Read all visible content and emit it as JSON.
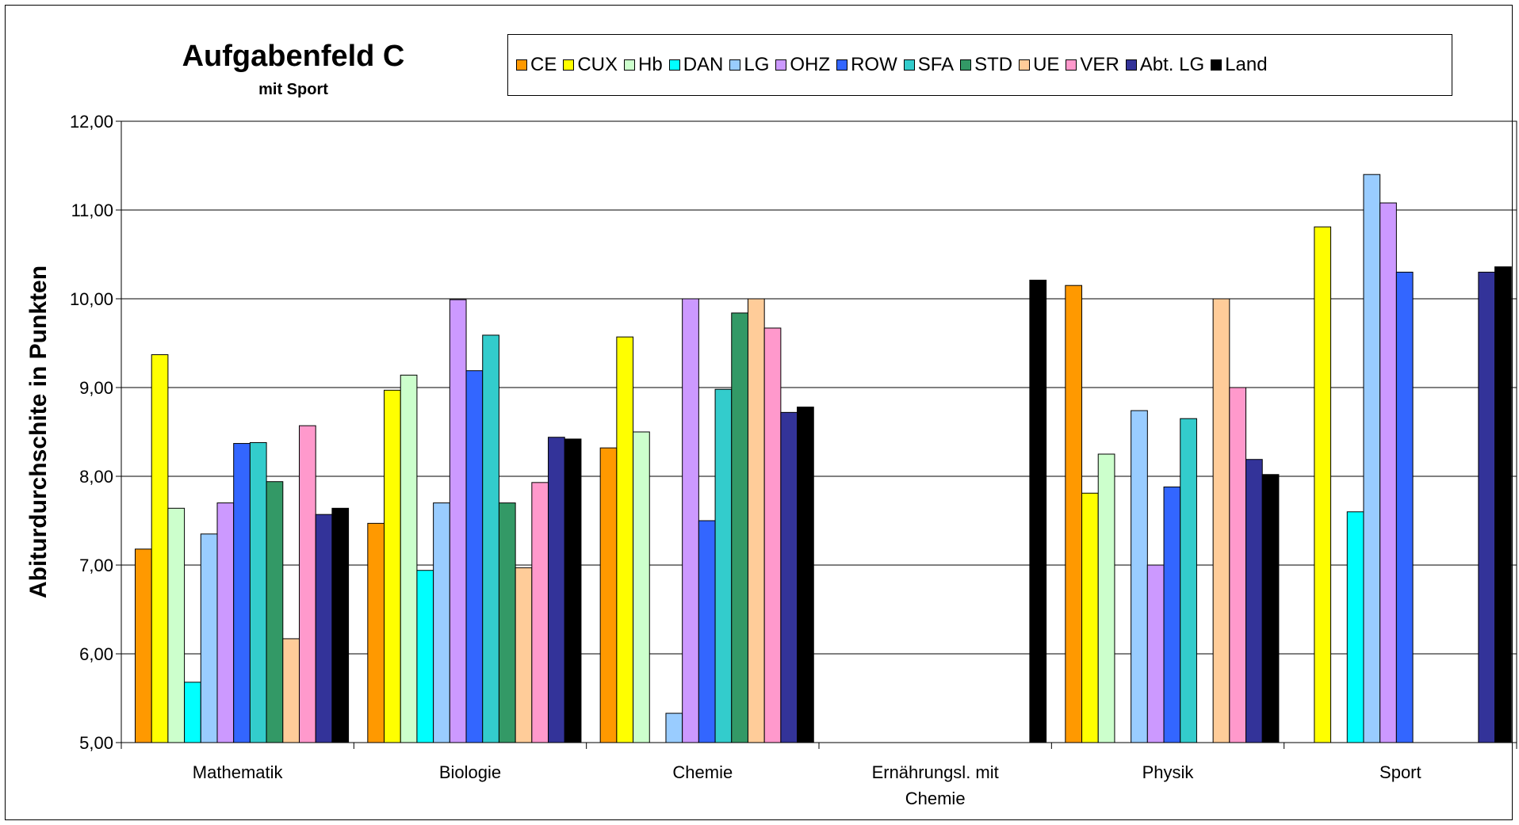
{
  "chart_data": {
    "type": "bar",
    "title": "Aufgabenfeld C",
    "subtitle": "mit Sport",
    "xlabel": "",
    "ylabel": "Abiturdurchschite in Punkten",
    "ylim": [
      5,
      12
    ],
    "yticks": [
      "5,00",
      "6,00",
      "7,00",
      "8,00",
      "9,00",
      "10,00",
      "11,00",
      "12,00"
    ],
    "grid": "horizontal",
    "legend_position": "top-right",
    "categories": [
      "Mathematik",
      "Biologie",
      "Chemie",
      "Ernährungsl. mit Chemie",
      "Physik",
      "Sport"
    ],
    "category_lines": [
      [
        "Mathematik"
      ],
      [
        "Biologie"
      ],
      [
        "Chemie"
      ],
      [
        "Ernährungsl. mit",
        "Chemie"
      ],
      [
        "Physik"
      ],
      [
        "Sport"
      ]
    ],
    "series": [
      {
        "name": "CE",
        "color": "#FF9900",
        "values": [
          7.18,
          7.47,
          8.32,
          null,
          10.15,
          null
        ]
      },
      {
        "name": "CUX",
        "color": "#FFFF00",
        "values": [
          9.37,
          8.97,
          9.57,
          null,
          7.81,
          10.81
        ]
      },
      {
        "name": "Hb",
        "color": "#CCFFCC",
        "values": [
          7.64,
          9.14,
          8.5,
          null,
          8.25,
          null
        ]
      },
      {
        "name": "DAN",
        "color": "#00FFFF",
        "values": [
          5.68,
          6.94,
          null,
          null,
          null,
          7.6
        ]
      },
      {
        "name": "LG",
        "color": "#99CCFF",
        "values": [
          7.35,
          7.7,
          5.33,
          null,
          8.74,
          11.4
        ]
      },
      {
        "name": "OHZ",
        "color": "#CC99FF",
        "values": [
          7.7,
          9.99,
          10.0,
          null,
          7.0,
          11.08
        ]
      },
      {
        "name": "ROW",
        "color": "#3366FF",
        "values": [
          8.37,
          9.19,
          7.5,
          null,
          7.88,
          10.3
        ]
      },
      {
        "name": "SFA",
        "color": "#33CCCC",
        "values": [
          8.38,
          9.59,
          8.98,
          null,
          8.65,
          null
        ]
      },
      {
        "name": "STD",
        "color": "#339966",
        "values": [
          7.94,
          7.7,
          9.84,
          null,
          null,
          null
        ]
      },
      {
        "name": "UE",
        "color": "#FFCC99",
        "values": [
          6.17,
          6.97,
          10.0,
          null,
          10.0,
          null
        ]
      },
      {
        "name": "VER",
        "color": "#FF99CC",
        "values": [
          8.57,
          7.93,
          9.67,
          null,
          9.0,
          null
        ]
      },
      {
        "name": "Abt. LG",
        "color": "#333399",
        "values": [
          7.57,
          8.44,
          8.72,
          null,
          8.19,
          10.3
        ]
      },
      {
        "name": "Land",
        "color": "#000000",
        "values": [
          7.64,
          8.42,
          8.78,
          10.21,
          8.02,
          10.36
        ]
      }
    ]
  }
}
